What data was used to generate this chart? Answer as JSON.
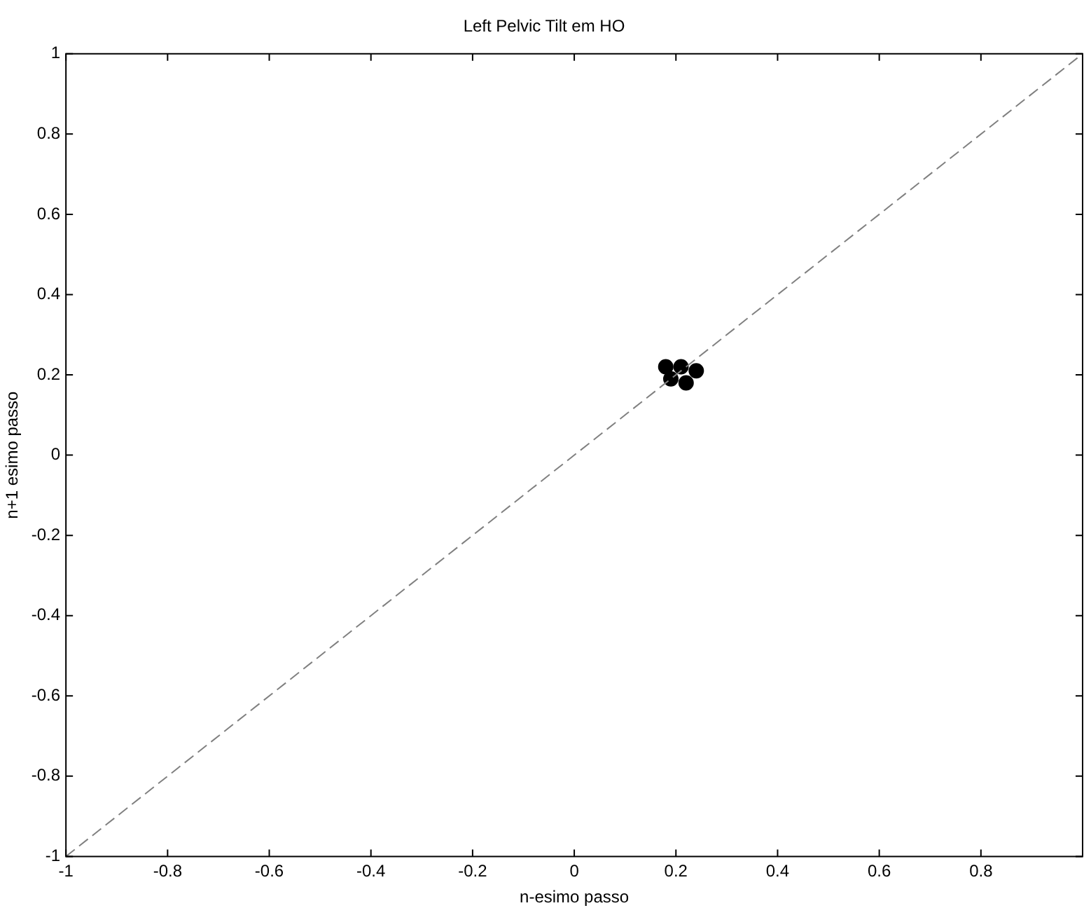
{
  "chart_data": {
    "type": "scatter",
    "title": "Left Pelvic Tilt em HO",
    "xlabel": "n-esimo passo",
    "ylabel": "n+1 esimo passo",
    "xlim": [
      -1,
      1
    ],
    "ylim": [
      -1,
      1
    ],
    "xticks": [
      -1,
      -0.8,
      -0.6,
      -0.4,
      -0.2,
      0,
      0.2,
      0.4,
      0.6,
      0.8,
      {
        "value": 1,
        "label": null
      }
    ],
    "yticks": [
      -1,
      -0.8,
      -0.6,
      -0.4,
      -0.2,
      0,
      0.2,
      0.4,
      0.6,
      0.8,
      1
    ],
    "grid": false,
    "legend": false,
    "series": [
      {
        "type": "line",
        "color": "#808080",
        "line_style": "dashed",
        "marker": "none",
        "x": [
          -1,
          1
        ],
        "values": [
          -1,
          1
        ]
      },
      {
        "type": "scatter",
        "color": "#000000",
        "marker": "circle",
        "x": [
          0.18,
          0.21,
          0.24,
          0.22,
          0.19
        ],
        "values": [
          0.22,
          0.22,
          0.21,
          0.18,
          0.19
        ]
      }
    ]
  }
}
